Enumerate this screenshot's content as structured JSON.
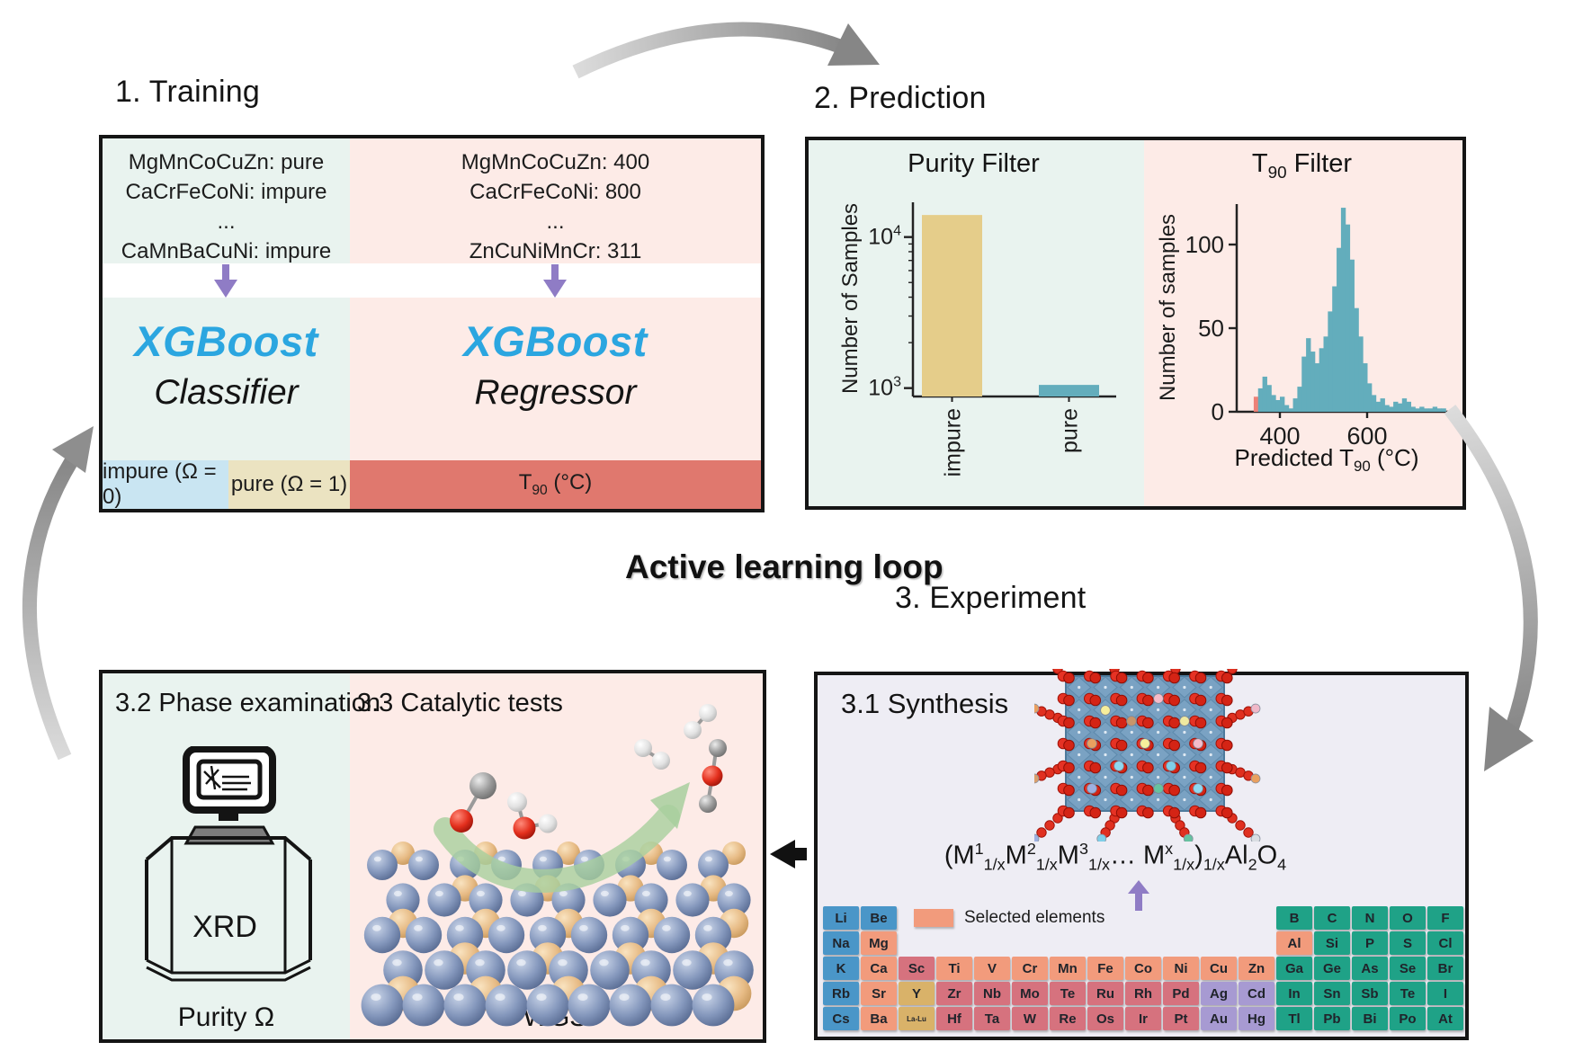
{
  "colors": {
    "mint": "#e9f3ef",
    "pink": "#fdebe7",
    "lavender": "#eeedf4",
    "white_band": "#ffffff",
    "impure_cell": "#c9e5f2",
    "pure_cell": "#ebe3c1",
    "t90_cell": "#e0786e",
    "xgb_blue": "#2ba6e0",
    "purple": "#8f7cc5",
    "border": "#151515",
    "bar_tan": "#e5cd8a",
    "bar_teal": "#63adbc",
    "hist_red": "#ee8177",
    "gray_arrow": "#8f8f8f",
    "green_arrow": "#a8cf9e",
    "alkali": "#4a96c8",
    "selected": "#f29b7c",
    "refractory": "#d6727e",
    "rare": "#d9b269",
    "noble": "#a79ad2",
    "pblock": "#1fa287"
  },
  "loop_title": "Active learning loop",
  "training": {
    "title": "1. Training",
    "classifier_data": [
      "MgMnCoCuZn: pure",
      "CaCrFeCoNi: impure",
      "...",
      "CaMnBaCuNi: impure"
    ],
    "regressor_data": [
      "MgMnCoCuZn: 400",
      "CaCrFeCoNi: 800",
      "...",
      "ZnCuNiMnCr: 311"
    ],
    "xgboost_label": "XGBoost",
    "classifier_label": "Classifier",
    "regressor_label": "Regressor",
    "impure_label": "impure (Ω = 0)",
    "pure_label": "pure (Ω = 1)",
    "t90_label": {
      "base": "T",
      "sub": "90",
      "rest": " (°C)"
    }
  },
  "prediction": {
    "title": "2. Prediction",
    "purity_title": "Purity Filter",
    "t90_title": {
      "base": "T",
      "sub": "90",
      "rest": " Filter"
    }
  },
  "experiment": {
    "title": "3. Experiment",
    "synthesis_title": "3.1 Synthesis",
    "legend_label": "Selected elements",
    "formula_parts": [
      {
        "t": "(M",
        "s": "n"
      },
      {
        "t": "1",
        "s": "sup"
      },
      {
        "t": "1/x",
        "s": "sub"
      },
      {
        "t": "M",
        "s": "n"
      },
      {
        "t": "2",
        "s": "sup"
      },
      {
        "t": "1/x",
        "s": "sub"
      },
      {
        "t": "M",
        "s": "n"
      },
      {
        "t": "3",
        "s": "sup"
      },
      {
        "t": "1/x",
        "s": "sub"
      },
      {
        "t": "… M",
        "s": "n"
      },
      {
        "t": "x",
        "s": "sup"
      },
      {
        "t": "1/x",
        "s": "sub"
      },
      {
        "t": ")",
        "s": "n"
      },
      {
        "t": "1/x",
        "s": "sub"
      },
      {
        "t": "Al",
        "s": "n"
      },
      {
        "t": "2",
        "s": "sub"
      },
      {
        "t": "O",
        "s": "n"
      },
      {
        "t": "4",
        "s": "sub"
      }
    ],
    "periodic": {
      "elements": [
        [
          "Li",
          1,
          1,
          "alkali"
        ],
        [
          "Be",
          1,
          2,
          "alkali"
        ],
        [
          "B",
          1,
          13,
          "pblock"
        ],
        [
          "C",
          1,
          14,
          "pblock"
        ],
        [
          "N",
          1,
          15,
          "pblock"
        ],
        [
          "O",
          1,
          16,
          "pblock"
        ],
        [
          "F",
          1,
          17,
          "pblock"
        ],
        [
          "Na",
          2,
          1,
          "alkali"
        ],
        [
          "Mg",
          2,
          2,
          "selected"
        ],
        [
          "Al",
          2,
          13,
          "selected"
        ],
        [
          "Si",
          2,
          14,
          "pblock"
        ],
        [
          "P",
          2,
          15,
          "pblock"
        ],
        [
          "S",
          2,
          16,
          "pblock"
        ],
        [
          "Cl",
          2,
          17,
          "pblock"
        ],
        [
          "K",
          3,
          1,
          "alkali"
        ],
        [
          "Ca",
          3,
          2,
          "selected"
        ],
        [
          "Sc",
          3,
          3,
          "refractory"
        ],
        [
          "Ti",
          3,
          4,
          "selected"
        ],
        [
          "V",
          3,
          5,
          "selected"
        ],
        [
          "Cr",
          3,
          6,
          "selected"
        ],
        [
          "Mn",
          3,
          7,
          "selected"
        ],
        [
          "Fe",
          3,
          8,
          "selected"
        ],
        [
          "Co",
          3,
          9,
          "selected"
        ],
        [
          "Ni",
          3,
          10,
          "selected"
        ],
        [
          "Cu",
          3,
          11,
          "selected"
        ],
        [
          "Zn",
          3,
          12,
          "selected"
        ],
        [
          "Ga",
          3,
          13,
          "pblock"
        ],
        [
          "Ge",
          3,
          14,
          "pblock"
        ],
        [
          "As",
          3,
          15,
          "pblock"
        ],
        [
          "Se",
          3,
          16,
          "pblock"
        ],
        [
          "Br",
          3,
          17,
          "pblock"
        ],
        [
          "Rb",
          4,
          1,
          "alkali"
        ],
        [
          "Sr",
          4,
          2,
          "selected"
        ],
        [
          "Y",
          4,
          3,
          "rare"
        ],
        [
          "Zr",
          4,
          4,
          "refractory"
        ],
        [
          "Nb",
          4,
          5,
          "refractory"
        ],
        [
          "Mo",
          4,
          6,
          "refractory"
        ],
        [
          "Te",
          4,
          7,
          "refractory"
        ],
        [
          "Ru",
          4,
          8,
          "refractory"
        ],
        [
          "Rh",
          4,
          9,
          "refractory"
        ],
        [
          "Pd",
          4,
          10,
          "refractory"
        ],
        [
          "Ag",
          4,
          11,
          "noble"
        ],
        [
          "Cd",
          4,
          12,
          "noble"
        ],
        [
          "In",
          4,
          13,
          "pblock"
        ],
        [
          "Sn",
          4,
          14,
          "pblock"
        ],
        [
          "Sb",
          4,
          15,
          "pblock"
        ],
        [
          "Te",
          4,
          16,
          "pblock"
        ],
        [
          "I",
          4,
          17,
          "pblock"
        ],
        [
          "Cs",
          5,
          1,
          "alkali"
        ],
        [
          "Ba",
          5,
          2,
          "selected"
        ],
        [
          "La-Lu",
          5,
          3,
          "rare"
        ],
        [
          "Hf",
          5,
          4,
          "refractory"
        ],
        [
          "Ta",
          5,
          5,
          "refractory"
        ],
        [
          "W",
          5,
          6,
          "refractory"
        ],
        [
          "Re",
          5,
          7,
          "refractory"
        ],
        [
          "Os",
          5,
          8,
          "refractory"
        ],
        [
          "Ir",
          5,
          9,
          "refractory"
        ],
        [
          "Pt",
          5,
          10,
          "refractory"
        ],
        [
          "Au",
          5,
          11,
          "noble"
        ],
        [
          "Hg",
          5,
          12,
          "noble"
        ],
        [
          "Tl",
          5,
          13,
          "pblock"
        ],
        [
          "Pb",
          5,
          14,
          "pblock"
        ],
        [
          "Bi",
          5,
          15,
          "pblock"
        ],
        [
          "Po",
          5,
          16,
          "pblock"
        ],
        [
          "At",
          5,
          17,
          "pblock"
        ]
      ]
    }
  },
  "phase": {
    "title": "3.2 Phase examination",
    "xrd_label": "XRD",
    "purity_label": "Purity Ω"
  },
  "catalytic": {
    "title": "3.3 Catalytic tests",
    "wgs_label": "WGS"
  },
  "chart_data": [
    {
      "type": "bar",
      "title": "Purity Filter",
      "categories": [
        "impure",
        "pure"
      ],
      "values": [
        14000,
        1050
      ],
      "ylabel": "Number of Samples",
      "yscale": "log",
      "yticks": [
        1000,
        10000
      ],
      "ylim": [
        880,
        16000
      ],
      "bar_colors": [
        "#e5cd8a",
        "#63adbc"
      ]
    },
    {
      "type": "histogram",
      "title": "T90 Filter",
      "ylabel": "Number of samples",
      "xlabel_parts": {
        "pre": "Predicted T",
        "sub": "90",
        "rest": " (°C)"
      },
      "yticks": [
        0,
        50,
        100
      ],
      "xticks": [
        400,
        600
      ],
      "ylim": [
        0,
        124
      ],
      "xlim": [
        330,
        790
      ],
      "bins_start": 340,
      "bin_width": 10,
      "values": [
        9,
        14,
        21,
        16,
        10,
        7,
        9,
        4,
        2,
        8,
        15,
        33,
        44,
        36,
        29,
        38,
        45,
        60,
        75,
        98,
        122,
        112,
        91,
        62,
        45,
        29,
        17,
        10,
        6,
        8,
        4,
        3,
        6,
        5,
        8,
        6,
        3,
        2,
        3,
        2,
        2,
        3,
        2,
        2
      ],
      "red_bins": [
        0
      ],
      "bar_color": "#63adbc",
      "red_color": "#ee8177"
    }
  ]
}
